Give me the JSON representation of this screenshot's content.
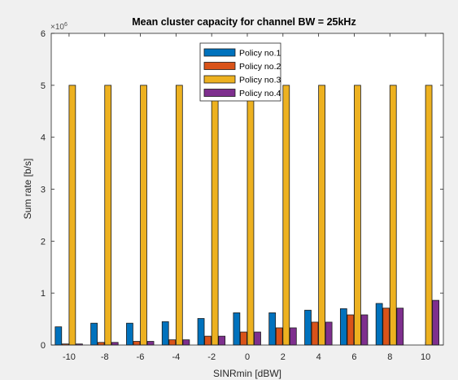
{
  "chart_data": {
    "type": "bar",
    "title": "Mean cluster capacity for channel BW =  25kHz",
    "xlabel": "SINRmin [dBW]",
    "ylabel": "Sum rate [b/s]",
    "y_exponent_label": "×10",
    "y_exponent_power": "6",
    "categories": [
      "-10",
      "-8",
      "-6",
      "-4",
      "-2",
      "0",
      "2",
      "4",
      "6",
      "8",
      "10"
    ],
    "x_values": [
      -10,
      -8,
      -6,
      -4,
      -2,
      0,
      2,
      4,
      6,
      8,
      10
    ],
    "ylim": [
      0,
      6
    ],
    "yticks": [
      0,
      1,
      2,
      3,
      4,
      5,
      6
    ],
    "grid": false,
    "legend_position": "top-center",
    "series": [
      {
        "name": "Policy no.1",
        "color": "#0072BD",
        "values": [
          0.35,
          0.42,
          0.42,
          0.45,
          0.51,
          0.62,
          0.62,
          0.67,
          0.7,
          0.8,
          0.0
        ]
      },
      {
        "name": "Policy no.2",
        "color": "#D95319",
        "values": [
          0.02,
          0.05,
          0.07,
          0.1,
          0.17,
          0.25,
          0.33,
          0.44,
          0.58,
          0.71,
          0.0
        ]
      },
      {
        "name": "Policy no.3",
        "color": "#EDB120",
        "values": [
          5,
          5,
          5,
          5,
          5,
          5,
          5,
          5,
          5,
          5,
          5
        ]
      },
      {
        "name": "Policy no.4",
        "color": "#7E2F8E",
        "values": [
          0.02,
          0.05,
          0.07,
          0.1,
          0.17,
          0.25,
          0.33,
          0.44,
          0.58,
          0.71,
          0.86
        ]
      }
    ]
  }
}
